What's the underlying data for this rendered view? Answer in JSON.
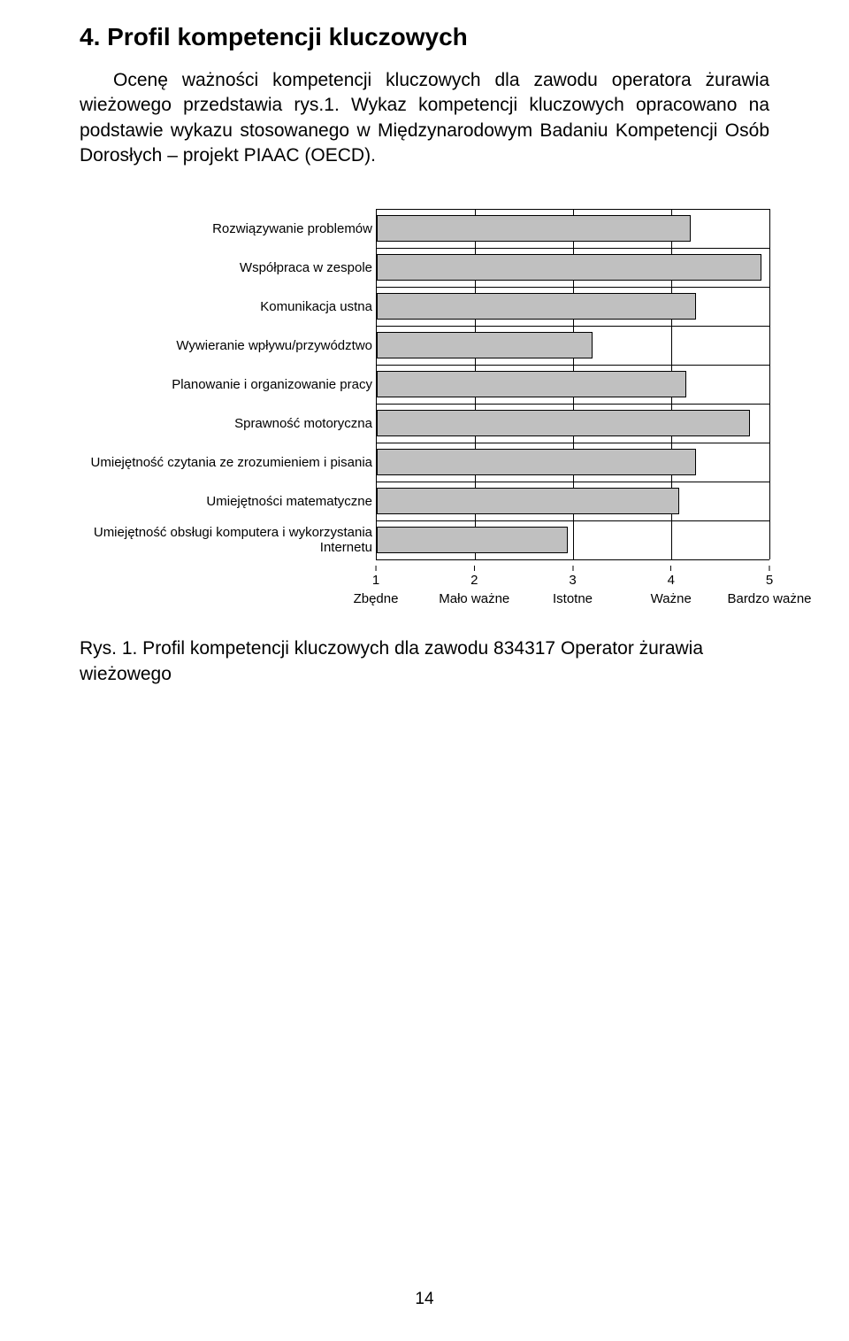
{
  "heading": "4. Profil kompetencji kluczowych",
  "paragraph_part1": "Ocenę ważności kompetencji kluczowych dla zawodu operatora żurawia wieżowego przedstawia rys.1. Wykaz kompetencji kluczowych opracowano na podstawie wykazu stosowanego w Międzynarodowym Badaniu Kompetencji Osób Dorosłych – projekt PIAAC (OECD).",
  "chart": {
    "type": "bar",
    "orientation": "horizontal",
    "xlim": [
      1,
      5
    ],
    "ticks": [
      {
        "number": "1",
        "label": "Zbędne"
      },
      {
        "number": "2",
        "label": "Mało ważne"
      },
      {
        "number": "3",
        "label": "Istotne"
      },
      {
        "number": "4",
        "label": "Ważne"
      },
      {
        "number": "5",
        "label": "Bardzo ważne"
      }
    ],
    "bar_fill": "#c0c0c0",
    "bar_border": "#000000",
    "grid_color": "#000000",
    "rows": [
      {
        "label": "Rozwiązywanie problemów",
        "value": 4.2
      },
      {
        "label": "Współpraca w zespole",
        "value": 4.92
      },
      {
        "label": "Komunikacja ustna",
        "value": 4.25
      },
      {
        "label": "Wywieranie wpływu/przywództwo",
        "value": 3.2
      },
      {
        "label": "Planowanie i organizowanie pracy",
        "value": 4.15
      },
      {
        "label": "Sprawność motoryczna",
        "value": 4.8
      },
      {
        "label": "Umiejętność czytania ze zrozumieniem i pisania",
        "value": 4.25
      },
      {
        "label": "Umiejętności matematyczne",
        "value": 4.08
      },
      {
        "label": "Umiejętność obsługi komputera i wykorzystania Internetu",
        "value": 2.95
      }
    ]
  },
  "figure_caption": "Rys. 1. Profil kompetencji kluczowych dla zawodu 834317 Operator żurawia wieżowego",
  "page_number": "14"
}
